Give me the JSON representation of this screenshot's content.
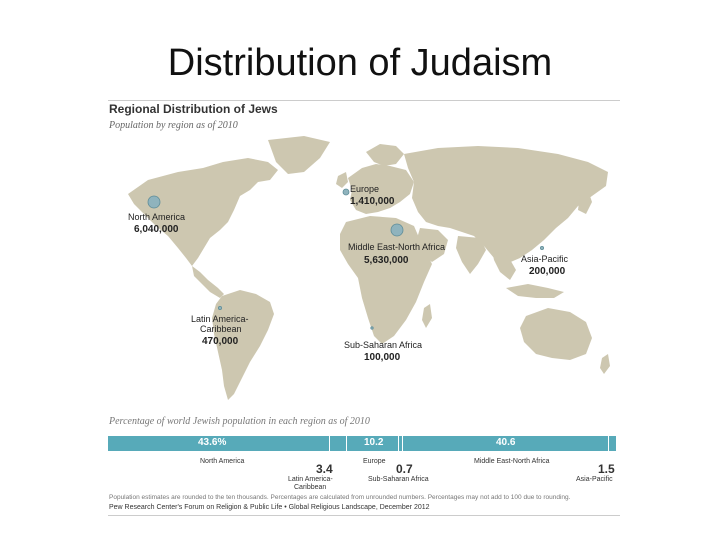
{
  "slide": {
    "title": "Distribution of Judaism"
  },
  "figure": {
    "heading": "Regional Distribution of Jews",
    "subheading": "Population by region as of 2010",
    "bubble_color": "#8fb3bd",
    "land_color": "#cdc7b0",
    "water_color": "#ffffff",
    "regions": [
      {
        "name": "North America",
        "value": "6,040,000"
      },
      {
        "name": "Europe",
        "value": "1,410,000"
      },
      {
        "name": "Middle East-North Africa",
        "value": "5,630,000"
      },
      {
        "name": "Asia-Pacific",
        "value": "200,000"
      },
      {
        "name": "Latin America-Caribbean",
        "value": "470,000"
      },
      {
        "name": "Sub-Saharan Africa",
        "value": "100,000"
      }
    ],
    "percentage_heading": "Percentage of world Jewish population in each region as of 2010",
    "bar_color": "#57aab9",
    "shares": [
      {
        "region": "North America",
        "percent": 43.6,
        "label": "43.6%"
      },
      {
        "region": "Latin America-Caribbean",
        "percent": 3.4,
        "label": "3.4"
      },
      {
        "region": "Europe",
        "percent": 10.2,
        "label": "10.2"
      },
      {
        "region": "Sub-Saharan Africa",
        "percent": 0.7,
        "label": "0.7"
      },
      {
        "region": "Middle East-North Africa",
        "percent": 40.6,
        "label": "40.6"
      },
      {
        "region": "Asia-Pacific",
        "percent": 1.5,
        "label": "1.5"
      }
    ],
    "footnote": "Population estimates are rounded to the ten thousands. Percentages are calculated from unrounded numbers. Percentages may not add to 100 due to rounding.",
    "source": "Pew Research Center's Forum on Religion & Public Life • Global Religious Landscape, December 2012"
  }
}
